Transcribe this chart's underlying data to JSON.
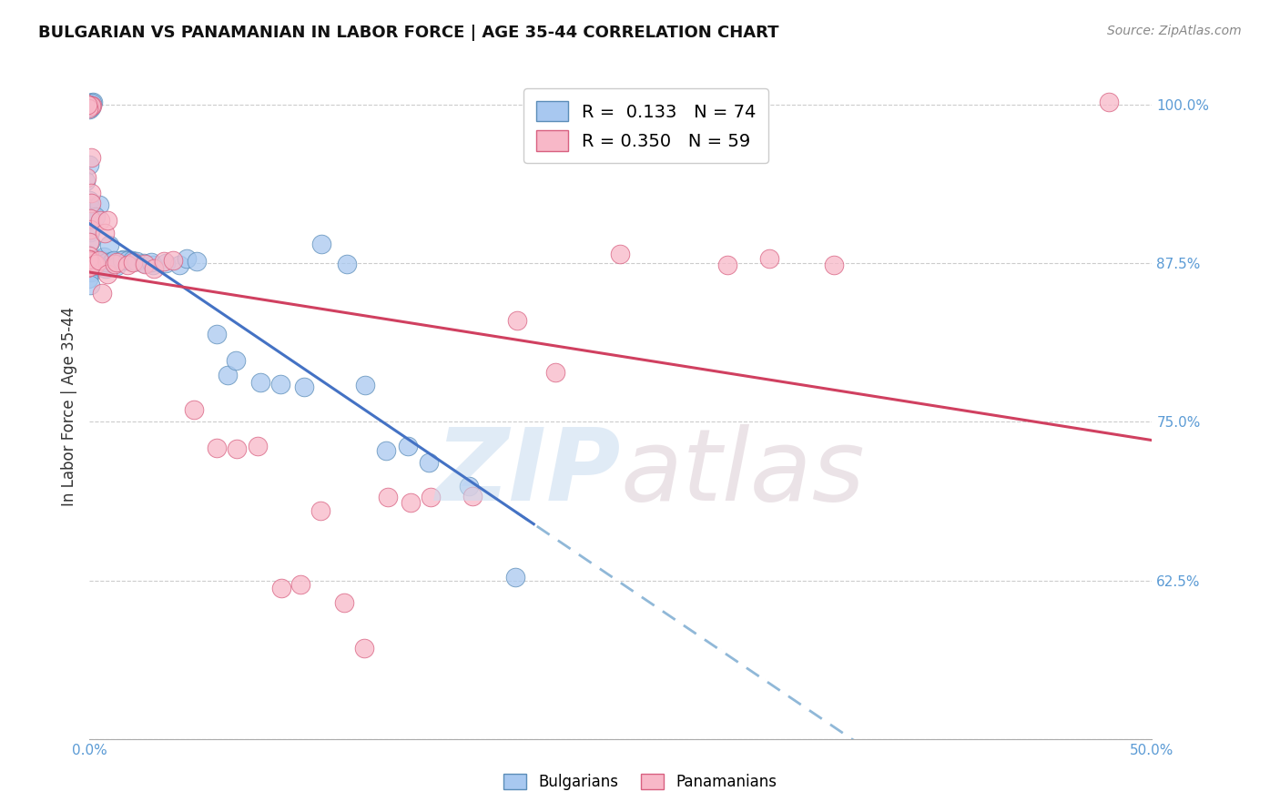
{
  "title": "BULGARIAN VS PANAMANIAN IN LABOR FORCE | AGE 35-44 CORRELATION CHART",
  "source": "Source: ZipAtlas.com",
  "ylabel": "In Labor Force | Age 35-44",
  "xlim": [
    0.0,
    0.5
  ],
  "ylim": [
    0.5,
    1.025
  ],
  "yticks": [
    0.5,
    0.625,
    0.75,
    0.875,
    1.0
  ],
  "yticklabels": [
    "",
    "62.5%",
    "75.0%",
    "87.5%",
    "100.0%"
  ],
  "xtick_positions": [
    0.0,
    0.1,
    0.2,
    0.3,
    0.4,
    0.5
  ],
  "xticklabels": [
    "0.0%",
    "",
    "",
    "",
    "",
    "50.0%"
  ],
  "legend_blue_R": "0.133",
  "legend_blue_N": "74",
  "legend_pink_R": "0.350",
  "legend_pink_N": "59",
  "blue_face_color": "#A8C8F0",
  "blue_edge_color": "#5B8DB8",
  "pink_face_color": "#F8B8C8",
  "pink_edge_color": "#D86080",
  "blue_line_color": "#4472C4",
  "pink_line_color": "#D04060",
  "dashed_line_color": "#90B8D8",
  "grid_color": "#CCCCCC",
  "blue_x": [
    0.0,
    0.0,
    0.0,
    0.0,
    0.0,
    0.0,
    0.0,
    0.0,
    0.0,
    0.0,
    0.0,
    0.0,
    0.0,
    0.0,
    0.0,
    0.0,
    0.0,
    0.0,
    0.0,
    0.0,
    0.0,
    0.0,
    0.0,
    0.0,
    0.0,
    0.0,
    0.0,
    0.0,
    0.0,
    0.0,
    0.0,
    0.0,
    0.003,
    0.003,
    0.003,
    0.004,
    0.004,
    0.005,
    0.005,
    0.006,
    0.006,
    0.007,
    0.008,
    0.009,
    0.01,
    0.01,
    0.012,
    0.013,
    0.015,
    0.016,
    0.018,
    0.02,
    0.022,
    0.025,
    0.03,
    0.03,
    0.035,
    0.04,
    0.045,
    0.05,
    0.06,
    0.065,
    0.07,
    0.08,
    0.09,
    0.1,
    0.11,
    0.12,
    0.13,
    0.14,
    0.15,
    0.16,
    0.18,
    0.2
  ],
  "blue_y": [
    1.0,
    1.0,
    1.0,
    1.0,
    1.0,
    1.0,
    1.0,
    1.0,
    0.95,
    0.94,
    0.93,
    0.92,
    0.91,
    0.9,
    0.89,
    0.88,
    0.875,
    0.875,
    0.875,
    0.875,
    0.875,
    0.875,
    0.875,
    0.875,
    0.875,
    0.875,
    0.875,
    0.875,
    0.87,
    0.865,
    0.86,
    0.855,
    0.875,
    0.875,
    0.875,
    0.92,
    0.91,
    0.875,
    0.875,
    0.88,
    0.87,
    0.875,
    0.875,
    0.875,
    0.89,
    0.875,
    0.875,
    0.875,
    0.875,
    0.875,
    0.875,
    0.875,
    0.875,
    0.875,
    0.875,
    0.875,
    0.875,
    0.875,
    0.875,
    0.875,
    0.82,
    0.79,
    0.8,
    0.78,
    0.78,
    0.78,
    0.89,
    0.875,
    0.78,
    0.73,
    0.73,
    0.72,
    0.7,
    0.625
  ],
  "pink_x": [
    0.0,
    0.0,
    0.0,
    0.0,
    0.0,
    0.0,
    0.0,
    0.0,
    0.0,
    0.0,
    0.0,
    0.0,
    0.0,
    0.0,
    0.0,
    0.0,
    0.0,
    0.0,
    0.0,
    0.0,
    0.0,
    0.0,
    0.0,
    0.0,
    0.003,
    0.004,
    0.005,
    0.006,
    0.007,
    0.009,
    0.01,
    0.012,
    0.015,
    0.018,
    0.02,
    0.025,
    0.03,
    0.035,
    0.04,
    0.05,
    0.06,
    0.07,
    0.08,
    0.09,
    0.1,
    0.11,
    0.12,
    0.13,
    0.14,
    0.15,
    0.16,
    0.18,
    0.2,
    0.22,
    0.25,
    0.3,
    0.32,
    0.35,
    0.48
  ],
  "pink_y": [
    1.0,
    1.0,
    1.0,
    1.0,
    1.0,
    1.0,
    0.96,
    0.94,
    0.93,
    0.92,
    0.91,
    0.9,
    0.89,
    0.88,
    0.875,
    0.875,
    0.875,
    0.875,
    0.875,
    0.875,
    0.875,
    0.875,
    0.875,
    0.875,
    0.875,
    0.875,
    0.91,
    0.85,
    0.9,
    0.87,
    0.91,
    0.875,
    0.875,
    0.875,
    0.875,
    0.875,
    0.875,
    0.875,
    0.875,
    0.76,
    0.73,
    0.73,
    0.73,
    0.62,
    0.62,
    0.68,
    0.61,
    0.57,
    0.69,
    0.69,
    0.69,
    0.69,
    0.83,
    0.79,
    0.88,
    0.875,
    0.875,
    0.875,
    1.0
  ]
}
